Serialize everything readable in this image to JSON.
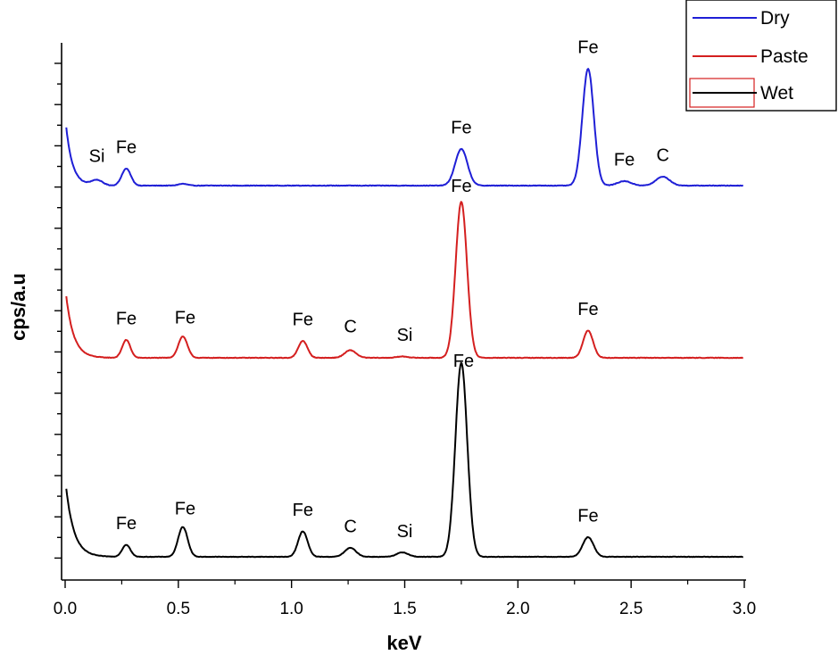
{
  "chart_data": {
    "type": "line",
    "xlabel": "keV",
    "ylabel": "cps/a.u",
    "xlim": [
      0.0,
      3.0
    ],
    "x_ticks": [
      "0.0",
      "0.5",
      "1.0",
      "1.5",
      "2.0",
      "2.5",
      "3.0"
    ],
    "grid": false,
    "legend_position": "top-right",
    "legend": [
      "Dry",
      "Paste",
      "Wet"
    ],
    "series": [
      {
        "name": "Dry",
        "color": "#1f1fd6",
        "baseline": 0,
        "noise": 0.012,
        "decay": {
          "amp": 1.55,
          "rate": 35
        },
        "peaks": [
          {
            "x": 0.14,
            "h": 0.12,
            "w": 0.025
          },
          {
            "x": 0.27,
            "h": 0.38,
            "w": 0.02
          },
          {
            "x": 0.52,
            "h": 0.04,
            "w": 0.02
          },
          {
            "x": 1.75,
            "h": 0.82,
            "w": 0.027
          },
          {
            "x": 2.31,
            "h": 2.62,
            "w": 0.025
          },
          {
            "x": 2.47,
            "h": 0.1,
            "w": 0.03
          },
          {
            "x": 2.64,
            "h": 0.2,
            "w": 0.03
          }
        ],
        "labels": [
          {
            "text": "Si",
            "x": 0.14,
            "dy": 0.2
          },
          {
            "text": "Fe",
            "x": 0.27,
            "dy": 0.15
          },
          {
            "text": "Fe",
            "x": 1.75,
            "dy": 0.15
          },
          {
            "text": "Fe",
            "x": 2.31,
            "dy": 0.15
          },
          {
            "text": "Fe",
            "x": 2.47,
            "dy": 0.15
          },
          {
            "text": "C",
            "x": 2.64,
            "dy": 0.15
          }
        ]
      },
      {
        "name": "Paste",
        "color": "#d41f1f",
        "baseline": 0,
        "noise": 0.012,
        "decay": {
          "amp": 1.6,
          "rate": 30
        },
        "peaks": [
          {
            "x": 0.27,
            "h": 0.4,
            "w": 0.018
          },
          {
            "x": 0.52,
            "h": 0.48,
            "w": 0.02
          },
          {
            "x": 1.05,
            "h": 0.38,
            "w": 0.02
          },
          {
            "x": 1.26,
            "h": 0.17,
            "w": 0.025
          },
          {
            "x": 1.49,
            "h": 0.03,
            "w": 0.025
          },
          {
            "x": 1.75,
            "h": 3.5,
            "w": 0.025
          },
          {
            "x": 2.31,
            "h": 0.61,
            "w": 0.022
          }
        ],
        "labels": [
          {
            "text": "Fe",
            "x": 0.27,
            "dy": 0.15
          },
          {
            "text": "Fe",
            "x": 0.53,
            "dy": 0.15
          },
          {
            "text": "Fe",
            "x": 1.05,
            "dy": 0.15
          },
          {
            "text": "C",
            "x": 1.26,
            "dy": 0.2
          },
          {
            "text": "Si",
            "x": 1.5,
            "dy": 0.15
          },
          {
            "text": "Fe",
            "x": 1.75,
            "dy": 0.02
          },
          {
            "text": "Fe",
            "x": 2.31,
            "dy": 0.15
          }
        ]
      },
      {
        "name": "Wet",
        "color": "#000000",
        "baseline": 0,
        "noise": 0.01,
        "decay": {
          "amp": 1.75,
          "rate": 28
        },
        "peaks": [
          {
            "x": 0.27,
            "h": 0.27,
            "w": 0.018
          },
          {
            "x": 0.52,
            "h": 0.67,
            "w": 0.021
          },
          {
            "x": 1.05,
            "h": 0.57,
            "w": 0.021
          },
          {
            "x": 1.26,
            "h": 0.2,
            "w": 0.025
          },
          {
            "x": 1.49,
            "h": 0.1,
            "w": 0.025
          },
          {
            "x": 1.75,
            "h": 4.35,
            "w": 0.026
          },
          {
            "x": 2.31,
            "h": 0.44,
            "w": 0.024
          }
        ],
        "labels": [
          {
            "text": "Fe",
            "x": 0.27,
            "dy": 0.15
          },
          {
            "text": "Fe",
            "x": 0.53,
            "dy": 0.15
          },
          {
            "text": "Fe",
            "x": 1.05,
            "dy": 0.15
          },
          {
            "text": "C",
            "x": 1.26,
            "dy": 0.15
          },
          {
            "text": "Si",
            "x": 1.5,
            "dy": 0.15
          },
          {
            "text": "Fe",
            "x": 1.76,
            "dy": 0.02
          },
          {
            "text": "Fe",
            "x": 2.31,
            "dy": 0.15
          }
        ]
      }
    ]
  }
}
